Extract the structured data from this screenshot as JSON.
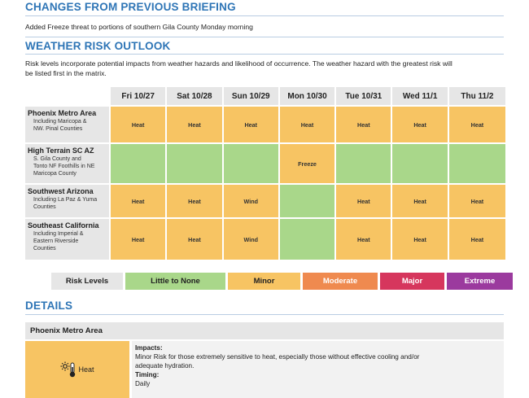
{
  "changes": {
    "title": "CHANGES FROM PREVIOUS BRIEFING",
    "text": "Added Freeze threat to portions of southern Gila County Monday morning"
  },
  "outlook": {
    "title": "WEATHER RISK OUTLOOK",
    "intro_line1": "Risk levels incorporate potential impacts from weather hazards and likelihood of occurrence. The weather hazard with the greatest risk will",
    "intro_line2": "be listed first in the matrix.",
    "days": [
      "Fri 10/27",
      "Sat 10/28",
      "Sun 10/29",
      "Mon 10/30",
      "Tue 10/31",
      "Wed 11/1",
      "Thu 11/2"
    ],
    "rows": [
      {
        "name": "Phoenix Metro Area",
        "sub": [
          "Including Maricopa &",
          "NW. Pinal Counties"
        ],
        "cells": [
          {
            "text": "Heat",
            "level": "minor"
          },
          {
            "text": "Heat",
            "level": "minor"
          },
          {
            "text": "Heat",
            "level": "minor"
          },
          {
            "text": "Heat",
            "level": "minor"
          },
          {
            "text": "Heat",
            "level": "minor"
          },
          {
            "text": "Heat",
            "level": "minor"
          },
          {
            "text": "Heat",
            "level": "minor"
          }
        ]
      },
      {
        "name": "High Terrain SC AZ",
        "sub": [
          "S. Gila County and",
          "Tonto NF Foothills in NE",
          "Maricopa County"
        ],
        "cells": [
          {
            "text": "",
            "level": "none"
          },
          {
            "text": "",
            "level": "none"
          },
          {
            "text": "",
            "level": "none"
          },
          {
            "text": "Freeze",
            "level": "minor"
          },
          {
            "text": "",
            "level": "none"
          },
          {
            "text": "",
            "level": "none"
          },
          {
            "text": "",
            "level": "none"
          }
        ]
      },
      {
        "name": "Southwest Arizona",
        "sub": [
          "Including La Paz & Yuma",
          "Counties"
        ],
        "cells": [
          {
            "text": "Heat",
            "level": "minor"
          },
          {
            "text": "Heat",
            "level": "minor"
          },
          {
            "text": "Wind",
            "level": "minor"
          },
          {
            "text": "",
            "level": "none"
          },
          {
            "text": "Heat",
            "level": "minor"
          },
          {
            "text": "Heat",
            "level": "minor"
          },
          {
            "text": "Heat",
            "level": "minor"
          }
        ]
      },
      {
        "name": "Southeast California",
        "sub": [
          "Including Imperial &",
          "Eastern Riverside",
          "Counties"
        ],
        "cells": [
          {
            "text": "Heat",
            "level": "minor"
          },
          {
            "text": "Heat",
            "level": "minor"
          },
          {
            "text": "Wind",
            "level": "minor"
          },
          {
            "text": "",
            "level": "none"
          },
          {
            "text": "Heat",
            "level": "minor"
          },
          {
            "text": "Heat",
            "level": "minor"
          },
          {
            "text": "Heat",
            "level": "minor"
          }
        ]
      }
    ]
  },
  "legend": {
    "label": "Risk Levels",
    "items": [
      {
        "text": "Little to None",
        "color": "#a9d78a",
        "text_color": "#222222"
      },
      {
        "text": "Minor",
        "color": "#f7c463",
        "text_color": "#222222"
      },
      {
        "text": "Moderate",
        "color": "#ef8a4f",
        "text_color": "#ffffff"
      },
      {
        "text": "Major",
        "color": "#d6365d",
        "text_color": "#ffffff"
      },
      {
        "text": "Extreme",
        "color": "#9b3a9e",
        "text_color": "#ffffff"
      }
    ]
  },
  "details": {
    "title": "DETAILS",
    "area": "Phoenix Metro Area",
    "hazard": "Heat",
    "hazard_icon": "thermometer-sun-icon",
    "impacts_label": "Impacts:",
    "impacts_line1": "Minor Risk for those extremely sensitive to heat, especially those without effective cooling and/or",
    "impacts_line2": "adequate hydration.",
    "timing_label": "Timing:",
    "timing_text": "Daily"
  },
  "colors": {
    "accent": "#2e75b6",
    "minor": "#f7c463",
    "none": "#a9d78a",
    "header_gray": "#e6e6e6"
  }
}
